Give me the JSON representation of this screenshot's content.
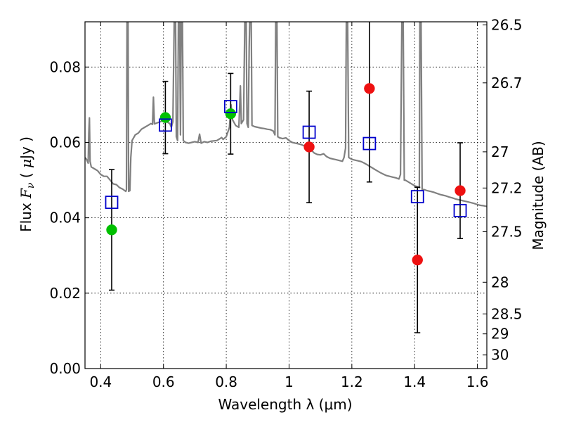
{
  "chart_data": {
    "type": "scatter",
    "title": "",
    "xlabel": "Wavelength  λ (μm)",
    "ylabel_parts": [
      "Flux ",
      "F",
      "ν",
      " ( ",
      "μ",
      "Jy )"
    ],
    "ylabel_right": "Magnitude (AB)",
    "xlim": [
      0.35,
      1.63
    ],
    "ylim": [
      0.0,
      0.092
    ],
    "grid": true,
    "x_ticks": [
      0.4,
      0.6,
      0.8,
      1.0,
      1.2,
      1.4,
      1.6
    ],
    "x_tick_labels": [
      "0.4",
      "0.6",
      "0.8",
      "1",
      "1.2",
      "1.4",
      "1.6"
    ],
    "y_ticks": [
      0.0,
      0.02,
      0.04,
      0.06,
      0.08
    ],
    "y_tick_labels": [
      "0.00",
      "0.02",
      "0.04",
      "0.06",
      "0.08"
    ],
    "right_ticks": [
      {
        "label": "26.5",
        "flux": 0.0912
      },
      {
        "label": "26.7",
        "flux": 0.0758
      },
      {
        "label": "27",
        "flux": 0.0575
      },
      {
        "label": "27.2",
        "flux": 0.0479
      },
      {
        "label": "27.5",
        "flux": 0.0363
      },
      {
        "label": "28",
        "flux": 0.0229
      },
      {
        "label": "28.5",
        "flux": 0.0145
      },
      {
        "label": "29",
        "flux": 0.0092
      },
      {
        "label": "30",
        "flux": 0.0036
      }
    ],
    "colors": {
      "green": "#00c000",
      "red": "#ee1111",
      "blue": "#0000cc",
      "spectrum": "#808080",
      "errorbar": "#000000"
    },
    "series": [
      {
        "marker": "circle",
        "color": "green",
        "points": [
          {
            "x": 0.435,
            "y": 0.0368,
            "err": 0.016
          },
          {
            "x": 0.606,
            "y": 0.0666,
            "err": 0.0096
          },
          {
            "x": 0.814,
            "y": 0.0676,
            "err": 0.0107
          }
        ]
      },
      {
        "marker": "circle",
        "color": "red",
        "points": [
          {
            "x": 1.064,
            "y": 0.0588,
            "err": 0.0148
          },
          {
            "x": 1.256,
            "y": 0.0743,
            "err": 0.0248
          },
          {
            "x": 1.409,
            "y": 0.0288,
            "err": 0.0193
          },
          {
            "x": 1.545,
            "y": 0.0472,
            "err": 0.0127
          }
        ]
      },
      {
        "marker": "open-square",
        "color": "blue",
        "points": [
          {
            "x": 0.435,
            "y": 0.0441
          },
          {
            "x": 0.606,
            "y": 0.0646
          },
          {
            "x": 0.814,
            "y": 0.0695
          },
          {
            "x": 1.064,
            "y": 0.0627
          },
          {
            "x": 1.256,
            "y": 0.0597
          },
          {
            "x": 1.409,
            "y": 0.0456
          },
          {
            "x": 1.545,
            "y": 0.0419
          }
        ]
      }
    ],
    "spectrum": [
      [
        0.35,
        0.056
      ],
      [
        0.355,
        0.0555
      ],
      [
        0.36,
        0.0545
      ],
      [
        0.362,
        0.0625
      ],
      [
        0.364,
        0.0665
      ],
      [
        0.366,
        0.055
      ],
      [
        0.37,
        0.0535
      ],
      [
        0.38,
        0.053
      ],
      [
        0.39,
        0.0525
      ],
      [
        0.4,
        0.0515
      ],
      [
        0.41,
        0.051
      ],
      [
        0.42,
        0.051
      ],
      [
        0.43,
        0.05
      ],
      [
        0.44,
        0.049
      ],
      [
        0.45,
        0.0488
      ],
      [
        0.46,
        0.048
      ],
      [
        0.47,
        0.0476
      ],
      [
        0.48,
        0.047
      ],
      [
        0.482,
        0.0475
      ],
      [
        0.484,
        0.098
      ],
      [
        0.487,
        0.098
      ],
      [
        0.489,
        0.047
      ],
      [
        0.493,
        0.0472
      ],
      [
        0.496,
        0.056
      ],
      [
        0.5,
        0.0605
      ],
      [
        0.51,
        0.062
      ],
      [
        0.52,
        0.0625
      ],
      [
        0.53,
        0.0635
      ],
      [
        0.54,
        0.064
      ],
      [
        0.55,
        0.0645
      ],
      [
        0.56,
        0.065
      ],
      [
        0.565,
        0.0648
      ],
      [
        0.568,
        0.072
      ],
      [
        0.571,
        0.0649
      ],
      [
        0.58,
        0.0652
      ],
      [
        0.59,
        0.0655
      ],
      [
        0.6,
        0.0658
      ],
      [
        0.61,
        0.0655
      ],
      [
        0.62,
        0.065
      ],
      [
        0.625,
        0.064
      ],
      [
        0.63,
        0.0655
      ],
      [
        0.635,
        0.098
      ],
      [
        0.638,
        0.098
      ],
      [
        0.641,
        0.0615
      ],
      [
        0.645,
        0.0605
      ],
      [
        0.648,
        0.098
      ],
      [
        0.651,
        0.098
      ],
      [
        0.654,
        0.062
      ],
      [
        0.657,
        0.098
      ],
      [
        0.66,
        0.098
      ],
      [
        0.663,
        0.0605
      ],
      [
        0.67,
        0.06
      ],
      [
        0.68,
        0.0598
      ],
      [
        0.69,
        0.06
      ],
      [
        0.7,
        0.0602
      ],
      [
        0.71,
        0.06
      ],
      [
        0.715,
        0.0622
      ],
      [
        0.72,
        0.0598
      ],
      [
        0.73,
        0.0602
      ],
      [
        0.74,
        0.06
      ],
      [
        0.75,
        0.0603
      ],
      [
        0.76,
        0.0604
      ],
      [
        0.77,
        0.0605
      ],
      [
        0.78,
        0.061
      ],
      [
        0.785,
        0.0613
      ],
      [
        0.79,
        0.0608
      ],
      [
        0.8,
        0.0615
      ],
      [
        0.81,
        0.064
      ],
      [
        0.815,
        0.07
      ],
      [
        0.82,
        0.066
      ],
      [
        0.83,
        0.0645
      ],
      [
        0.84,
        0.064
      ],
      [
        0.845,
        0.075
      ],
      [
        0.848,
        0.065
      ],
      [
        0.855,
        0.066
      ],
      [
        0.86,
        0.098
      ],
      [
        0.863,
        0.098
      ],
      [
        0.866,
        0.065
      ],
      [
        0.87,
        0.064
      ],
      [
        0.873,
        0.085
      ],
      [
        0.876,
        0.098
      ],
      [
        0.879,
        0.098
      ],
      [
        0.882,
        0.0645
      ],
      [
        0.89,
        0.0642
      ],
      [
        0.9,
        0.064
      ],
      [
        0.91,
        0.0638
      ],
      [
        0.92,
        0.0637
      ],
      [
        0.93,
        0.0635
      ],
      [
        0.94,
        0.0634
      ],
      [
        0.95,
        0.063
      ],
      [
        0.955,
        0.062
      ],
      [
        0.958,
        0.098
      ],
      [
        0.961,
        0.098
      ],
      [
        0.964,
        0.0615
      ],
      [
        0.97,
        0.0612
      ],
      [
        0.98,
        0.061
      ],
      [
        0.99,
        0.0612
      ],
      [
        1.0,
        0.0605
      ],
      [
        1.01,
        0.06
      ],
      [
        1.02,
        0.0598
      ],
      [
        1.03,
        0.0596
      ],
      [
        1.04,
        0.0594
      ],
      [
        1.05,
        0.059
      ],
      [
        1.06,
        0.0585
      ],
      [
        1.07,
        0.058
      ],
      [
        1.08,
        0.0572
      ],
      [
        1.09,
        0.0568
      ],
      [
        1.1,
        0.0567
      ],
      [
        1.11,
        0.057
      ],
      [
        1.12,
        0.0562
      ],
      [
        1.13,
        0.0558
      ],
      [
        1.14,
        0.0556
      ],
      [
        1.15,
        0.0554
      ],
      [
        1.16,
        0.0552
      ],
      [
        1.17,
        0.055
      ],
      [
        1.175,
        0.056
      ],
      [
        1.18,
        0.0585
      ],
      [
        1.183,
        0.098
      ],
      [
        1.186,
        0.098
      ],
      [
        1.19,
        0.056
      ],
      [
        1.2,
        0.0555
      ],
      [
        1.21,
        0.0553
      ],
      [
        1.22,
        0.0551
      ],
      [
        1.23,
        0.0549
      ],
      [
        1.24,
        0.0545
      ],
      [
        1.25,
        0.054
      ],
      [
        1.26,
        0.0535
      ],
      [
        1.27,
        0.053
      ],
      [
        1.28,
        0.0525
      ],
      [
        1.29,
        0.052
      ],
      [
        1.3,
        0.0516
      ],
      [
        1.31,
        0.0512
      ],
      [
        1.32,
        0.051
      ],
      [
        1.33,
        0.0508
      ],
      [
        1.34,
        0.0506
      ],
      [
        1.35,
        0.0503
      ],
      [
        1.355,
        0.0515
      ],
      [
        1.36,
        0.098
      ],
      [
        1.363,
        0.098
      ],
      [
        1.367,
        0.05
      ],
      [
        1.37,
        0.05
      ],
      [
        1.38,
        0.0495
      ],
      [
        1.39,
        0.049
      ],
      [
        1.4,
        0.0485
      ],
      [
        1.41,
        0.0482
      ],
      [
        1.415,
        0.048
      ],
      [
        1.417,
        0.098
      ],
      [
        1.42,
        0.098
      ],
      [
        1.424,
        0.0475
      ],
      [
        1.43,
        0.0475
      ],
      [
        1.44,
        0.0472
      ],
      [
        1.45,
        0.047
      ],
      [
        1.46,
        0.0468
      ],
      [
        1.47,
        0.0465
      ],
      [
        1.48,
        0.0462
      ],
      [
        1.49,
        0.046
      ],
      [
        1.5,
        0.0458
      ],
      [
        1.51,
        0.0455
      ],
      [
        1.52,
        0.0453
      ],
      [
        1.53,
        0.045
      ],
      [
        1.54,
        0.0448
      ],
      [
        1.55,
        0.0446
      ],
      [
        1.56,
        0.0444
      ],
      [
        1.57,
        0.0442
      ],
      [
        1.58,
        0.044
      ],
      [
        1.59,
        0.0438
      ],
      [
        1.6,
        0.0435
      ],
      [
        1.61,
        0.0433
      ],
      [
        1.62,
        0.0432
      ],
      [
        1.63,
        0.043
      ]
    ]
  }
}
